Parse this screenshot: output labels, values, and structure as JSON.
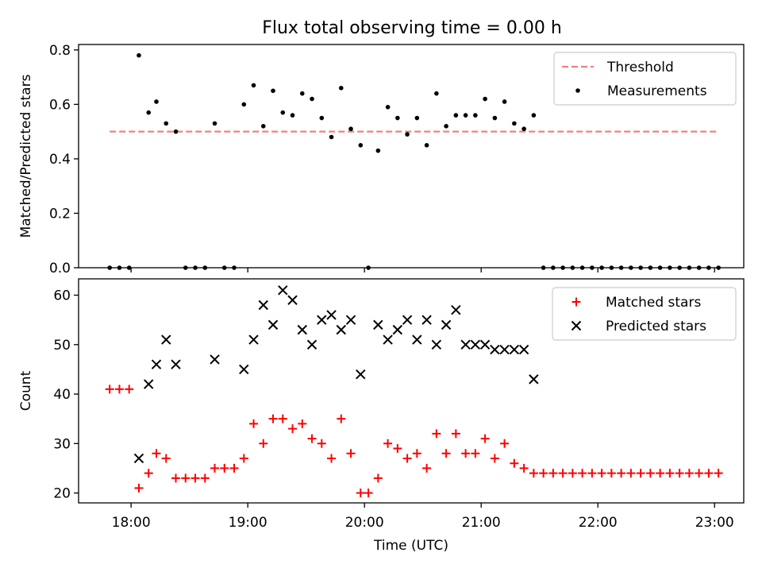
{
  "title": "Flux total observing time = 0.00 h",
  "chart_data": [
    {
      "type": "scatter",
      "ylabel": "Matched/Predicted stars",
      "xlabel": "",
      "x_ticks": [
        "18:00",
        "19:00",
        "20:00",
        "21:00",
        "22:00",
        "23:00"
      ],
      "y_ticks": [
        "0.0",
        "0.2",
        "0.4",
        "0.6",
        "0.8"
      ],
      "xlim": [
        "17:33",
        "23:15"
      ],
      "ylim": [
        0,
        0.82
      ],
      "grid": false,
      "legend": "top-right",
      "threshold": {
        "name": "Threshold",
        "value": 0.5,
        "x_range": [
          "17:49",
          "23:02"
        ],
        "color": "#f08080",
        "style": "dashed"
      },
      "series": [
        {
          "name": "Measurements",
          "color": "#000000",
          "marker": "dot",
          "points": [
            [
              "17:49",
              0.0
            ],
            [
              "17:54",
              0.0
            ],
            [
              "17:59",
              0.0
            ],
            [
              "18:04",
              0.78
            ],
            [
              "18:09",
              0.57
            ],
            [
              "18:13",
              0.61
            ],
            [
              "18:18",
              0.53
            ],
            [
              "18:23",
              0.5
            ],
            [
              "18:28",
              0.0
            ],
            [
              "18:33",
              0.0
            ],
            [
              "18:38",
              0.0
            ],
            [
              "18:43",
              0.53
            ],
            [
              "18:48",
              0.0
            ],
            [
              "18:53",
              0.0
            ],
            [
              "18:58",
              0.6
            ],
            [
              "19:03",
              0.67
            ],
            [
              "19:08",
              0.52
            ],
            [
              "19:13",
              0.65
            ],
            [
              "19:18",
              0.57
            ],
            [
              "19:23",
              0.56
            ],
            [
              "19:28",
              0.64
            ],
            [
              "19:33",
              0.62
            ],
            [
              "19:38",
              0.55
            ],
            [
              "19:43",
              0.48
            ],
            [
              "19:48",
              0.66
            ],
            [
              "19:53",
              0.51
            ],
            [
              "19:58",
              0.45
            ],
            [
              "20:02",
              0.0
            ],
            [
              "20:07",
              0.43
            ],
            [
              "20:12",
              0.59
            ],
            [
              "20:17",
              0.55
            ],
            [
              "20:22",
              0.49
            ],
            [
              "20:27",
              0.55
            ],
            [
              "20:32",
              0.45
            ],
            [
              "20:37",
              0.64
            ],
            [
              "20:42",
              0.52
            ],
            [
              "20:47",
              0.56
            ],
            [
              "20:52",
              0.56
            ],
            [
              "20:57",
              0.56
            ],
            [
              "21:02",
              0.62
            ],
            [
              "21:07",
              0.55
            ],
            [
              "21:12",
              0.61
            ],
            [
              "21:17",
              0.53
            ],
            [
              "21:22",
              0.51
            ],
            [
              "21:27",
              0.56
            ],
            [
              "21:32",
              0.0
            ],
            [
              "21:37",
              0.0
            ],
            [
              "21:42",
              0.0
            ],
            [
              "21:47",
              0.0
            ],
            [
              "21:52",
              0.0
            ],
            [
              "21:57",
              0.0
            ],
            [
              "22:02",
              0.0
            ],
            [
              "22:07",
              0.0
            ],
            [
              "22:12",
              0.0
            ],
            [
              "22:17",
              0.0
            ],
            [
              "22:22",
              0.0
            ],
            [
              "22:27",
              0.0
            ],
            [
              "22:32",
              0.0
            ],
            [
              "22:37",
              0.0
            ],
            [
              "22:42",
              0.0
            ],
            [
              "22:47",
              0.0
            ],
            [
              "22:52",
              0.0
            ],
            [
              "22:57",
              0.0
            ],
            [
              "23:02",
              0.0
            ]
          ]
        }
      ]
    },
    {
      "type": "scatter",
      "ylabel": "Count",
      "xlabel": "Time (UTC)",
      "x_ticks": [
        "18:00",
        "19:00",
        "20:00",
        "21:00",
        "22:00",
        "23:00"
      ],
      "y_ticks": [
        "20",
        "30",
        "40",
        "50",
        "60"
      ],
      "xlim": [
        "17:33",
        "23:15"
      ],
      "ylim": [
        18,
        63.3
      ],
      "grid": false,
      "legend": "top-right",
      "series": [
        {
          "name": "Matched stars",
          "color": "#ff0000",
          "marker": "plus",
          "points": [
            [
              "17:49",
              41
            ],
            [
              "17:54",
              41
            ],
            [
              "17:59",
              41
            ],
            [
              "18:04",
              21
            ],
            [
              "18:09",
              24
            ],
            [
              "18:13",
              28
            ],
            [
              "18:18",
              27
            ],
            [
              "18:23",
              23
            ],
            [
              "18:28",
              23
            ],
            [
              "18:33",
              23
            ],
            [
              "18:38",
              23
            ],
            [
              "18:43",
              25
            ],
            [
              "18:48",
              25
            ],
            [
              "18:53",
              25
            ],
            [
              "18:58",
              27
            ],
            [
              "19:03",
              34
            ],
            [
              "19:08",
              30
            ],
            [
              "19:13",
              35
            ],
            [
              "19:18",
              35
            ],
            [
              "19:23",
              33
            ],
            [
              "19:28",
              34
            ],
            [
              "19:33",
              31
            ],
            [
              "19:38",
              30
            ],
            [
              "19:43",
              27
            ],
            [
              "19:48",
              35
            ],
            [
              "19:53",
              28
            ],
            [
              "19:58",
              20
            ],
            [
              "20:02",
              20
            ],
            [
              "20:07",
              23
            ],
            [
              "20:12",
              30
            ],
            [
              "20:17",
              29
            ],
            [
              "20:22",
              27
            ],
            [
              "20:27",
              28
            ],
            [
              "20:32",
              25
            ],
            [
              "20:37",
              32
            ],
            [
              "20:42",
              28
            ],
            [
              "20:47",
              32
            ],
            [
              "20:52",
              28
            ],
            [
              "20:57",
              28
            ],
            [
              "21:02",
              31
            ],
            [
              "21:07",
              27
            ],
            [
              "21:12",
              30
            ],
            [
              "21:17",
              26
            ],
            [
              "21:22",
              25
            ],
            [
              "21:27",
              24
            ],
            [
              "21:32",
              24
            ],
            [
              "21:37",
              24
            ],
            [
              "21:42",
              24
            ],
            [
              "21:47",
              24
            ],
            [
              "21:52",
              24
            ],
            [
              "21:57",
              24
            ],
            [
              "22:02",
              24
            ],
            [
              "22:07",
              24
            ],
            [
              "22:12",
              24
            ],
            [
              "22:17",
              24
            ],
            [
              "22:22",
              24
            ],
            [
              "22:27",
              24
            ],
            [
              "22:32",
              24
            ],
            [
              "22:37",
              24
            ],
            [
              "22:42",
              24
            ],
            [
              "22:47",
              24
            ],
            [
              "22:52",
              24
            ],
            [
              "22:57",
              24
            ],
            [
              "23:02",
              24
            ]
          ]
        },
        {
          "name": "Predicted stars",
          "color": "#000000",
          "marker": "x",
          "points": [
            [
              "18:04",
              27
            ],
            [
              "18:09",
              42
            ],
            [
              "18:13",
              46
            ],
            [
              "18:18",
              51
            ],
            [
              "18:23",
              46
            ],
            [
              "18:43",
              47
            ],
            [
              "18:58",
              45
            ],
            [
              "19:03",
              51
            ],
            [
              "19:08",
              58
            ],
            [
              "19:13",
              54
            ],
            [
              "19:18",
              61
            ],
            [
              "19:23",
              59
            ],
            [
              "19:28",
              53
            ],
            [
              "19:33",
              50
            ],
            [
              "19:38",
              55
            ],
            [
              "19:43",
              56
            ],
            [
              "19:48",
              53
            ],
            [
              "19:53",
              55
            ],
            [
              "19:58",
              44
            ],
            [
              "20:07",
              54
            ],
            [
              "20:12",
              51
            ],
            [
              "20:17",
              53
            ],
            [
              "20:22",
              55
            ],
            [
              "20:27",
              51
            ],
            [
              "20:32",
              55
            ],
            [
              "20:37",
              50
            ],
            [
              "20:42",
              54
            ],
            [
              "20:47",
              57
            ],
            [
              "20:52",
              50
            ],
            [
              "20:57",
              50
            ],
            [
              "21:02",
              50
            ],
            [
              "21:07",
              49
            ],
            [
              "21:12",
              49
            ],
            [
              "21:17",
              49
            ],
            [
              "21:22",
              49
            ],
            [
              "21:27",
              43
            ]
          ]
        }
      ]
    }
  ]
}
